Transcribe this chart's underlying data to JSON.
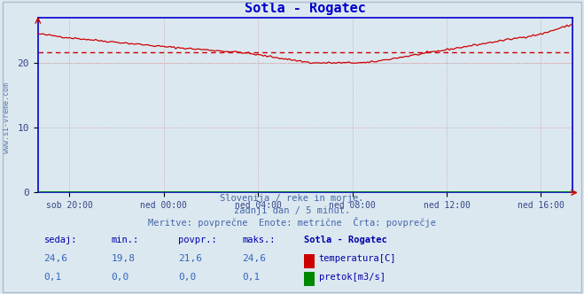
{
  "title": "Sotla - Rogatec",
  "title_color": "#0000cc",
  "background_color": "#dce8f0",
  "plot_bg_color": "#dce8f0",
  "x_tick_labels": [
    "sob 20:00",
    "ned 00:00",
    "ned 04:00",
    "ned 08:00",
    "ned 12:00",
    "ned 16:00"
  ],
  "x_tick_positions": [
    4,
    16,
    28,
    40,
    52,
    64
  ],
  "y_ticks": [
    0,
    10,
    20
  ],
  "ylim": [
    0,
    27
  ],
  "xlim": [
    0,
    68
  ],
  "avg_line_value": 21.6,
  "temp_color": "#cc0000",
  "flow_color": "#008800",
  "avg_line_color": "#cc0000",
  "grid_color_v": "#cc8888",
  "grid_color_h": "#cc8888",
  "spine_color": "#0000cc",
  "watermark": "www.si-vreme.com",
  "footer_line1": "Slovenija / reke in morje.",
  "footer_line2": "zadnji dan / 5 minut.",
  "footer_line3": "Meritve: povprečne  Enote: metrične  Črta: povprečje",
  "footer_color": "#4466aa",
  "table_headers": [
    "sedaj:",
    "min.:",
    "povpr.:",
    "maks.:",
    "Sotla - Rogatec"
  ],
  "table_row1": [
    "24,6",
    "19,8",
    "21,6",
    "24,6",
    "temperatura[C]"
  ],
  "table_row2": [
    "0,1",
    "0,0",
    "0,0",
    "0,1",
    "pretok[m3/s]"
  ],
  "table_header_color": "#0000aa",
  "table_values_color": "#3366bb",
  "outer_border_color": "#aabbcc"
}
